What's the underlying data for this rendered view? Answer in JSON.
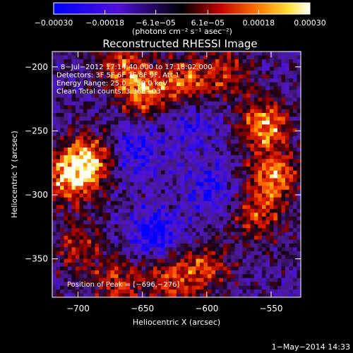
{
  "chart_data": {
    "type": "heatmap",
    "title": "Reconstructed RHESSI Image",
    "xlabel": "Heliocentric X (arcsec)",
    "ylabel": "Heliocentric Y (arcsec)",
    "xlim": [
      -720,
      -527
    ],
    "ylim": [
      -380,
      -188
    ],
    "x_ticks": [
      -700,
      -650,
      -600,
      -550
    ],
    "x_tick_labels": [
      "−700",
      "−650",
      "−600",
      "−550"
    ],
    "y_ticks": [
      -200,
      -250,
      -300,
      -350
    ],
    "y_tick_labels": [
      "−200",
      "−250",
      "−300",
      "−350"
    ],
    "colorbar": {
      "min": -0.0003,
      "max": 0.0003,
      "tick_labels": [
        "−0.00030",
        "−0.00018",
        "−6.1e−05",
        "6.1e−05",
        "0.00018",
        "0.00030"
      ],
      "unit_label": "(photons cm⁻² s⁻¹ asec⁻²)"
    },
    "info_lines": [
      "8−Jul−2012 17:14:40.000 to 17:18:02.000",
      "Detectors: 3F 5F 6F 7F 8F 9F, Att 1",
      "Energy Range: 25.0 − 50.0 keV",
      "Clean     Total counts: 3.36E+03"
    ],
    "peak_label": "Position of Peak = [−696,−276]",
    "peak": [
      -696,
      -276
    ],
    "bright_sources": [
      {
        "x": -693,
        "y": -273,
        "level": 1.0
      },
      {
        "x": -708,
        "y": -288,
        "level": 0.75
      },
      {
        "x": -555,
        "y": -245,
        "level": 0.9
      },
      {
        "x": -548,
        "y": -285,
        "level": 0.85
      },
      {
        "x": -560,
        "y": -318,
        "level": 0.6
      },
      {
        "x": -650,
        "y": -220,
        "level": 0.75
      },
      {
        "x": -618,
        "y": -212,
        "level": 0.7
      },
      {
        "x": -668,
        "y": -198,
        "level": 0.6
      },
      {
        "x": -585,
        "y": -205,
        "level": 0.55
      },
      {
        "x": -630,
        "y": -365,
        "level": 0.65
      },
      {
        "x": -600,
        "y": -358,
        "level": 0.6
      },
      {
        "x": -670,
        "y": -368,
        "level": 0.55
      },
      {
        "x": -700,
        "y": -340,
        "level": 0.5
      }
    ],
    "dark_regions": [
      {
        "x": -640,
        "y": -330,
        "level": -0.7
      },
      {
        "x": -655,
        "y": -265,
        "level": -0.5
      },
      {
        "x": -598,
        "y": -295,
        "level": -0.45
      },
      {
        "x": -612,
        "y": -245,
        "level": -0.4
      }
    ]
  },
  "footer": {
    "date": "1−May−2014 14:33"
  }
}
